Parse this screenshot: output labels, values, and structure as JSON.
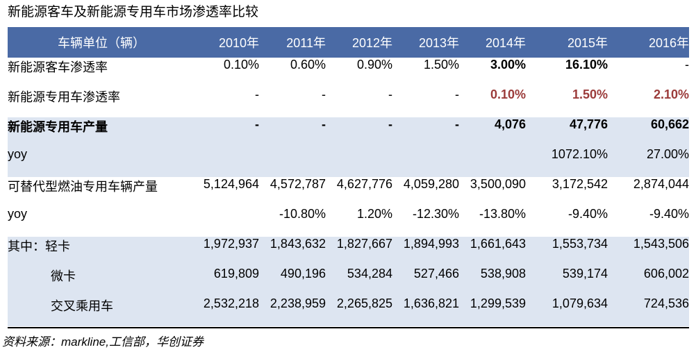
{
  "title": "新能源客车及新能源专用车市场渗透率比较",
  "header": [
    "车辆单位（辆）",
    "2010年",
    "2011年",
    "2012年",
    "2013年",
    "2014年",
    "2015年",
    "2016年"
  ],
  "rows": [
    {
      "label": "新能源客车渗透率",
      "cells": [
        "0.10%",
        "0.60%",
        "0.90%",
        "1.50%",
        "3.00%",
        "16.10%",
        "-"
      ]
    },
    {
      "label": "新能源专用车渗透率",
      "cells": [
        "-",
        "-",
        "-",
        "-",
        "0.10%",
        "1.50%",
        "2.10%"
      ]
    },
    {
      "label": "新能源专用车产量",
      "cells": [
        "-",
        "-",
        "-",
        "-",
        "4,076",
        "47,776",
        "60,662"
      ]
    },
    {
      "label": "yoy",
      "cells": [
        "",
        "",
        "",
        "",
        "",
        "1072.10%",
        "27.00%"
      ]
    },
    {
      "label": "可替代型燃油专用车辆产量",
      "cells": [
        "5,124,964",
        "4,572,787",
        "4,627,776",
        "4,059,280",
        "3,500,090",
        "3,172,542",
        "2,874,044"
      ]
    },
    {
      "label": "yoy",
      "cells": [
        "",
        "-10.80%",
        "1.20%",
        "-12.30%",
        "-13.80%",
        "-9.40%",
        "-9.40%"
      ]
    },
    {
      "label": "其中：轻卡",
      "cells": [
        "1,972,937",
        "1,843,632",
        "1,827,667",
        "1,894,993",
        "1,661,643",
        "1,553,734",
        "1,543,506"
      ]
    },
    {
      "label": "微卡",
      "cells": [
        "619,809",
        "490,196",
        "534,284",
        "527,466",
        "538,908",
        "539,174",
        "606,002"
      ]
    },
    {
      "label": "交叉乘用车",
      "cells": [
        "2,532,218",
        "2,238,959",
        "2,265,825",
        "1,636,821",
        "1,299,539",
        "1,079,634",
        "724,536"
      ]
    }
  ],
  "source": "资料来源：markline,工信部，华创证券"
}
